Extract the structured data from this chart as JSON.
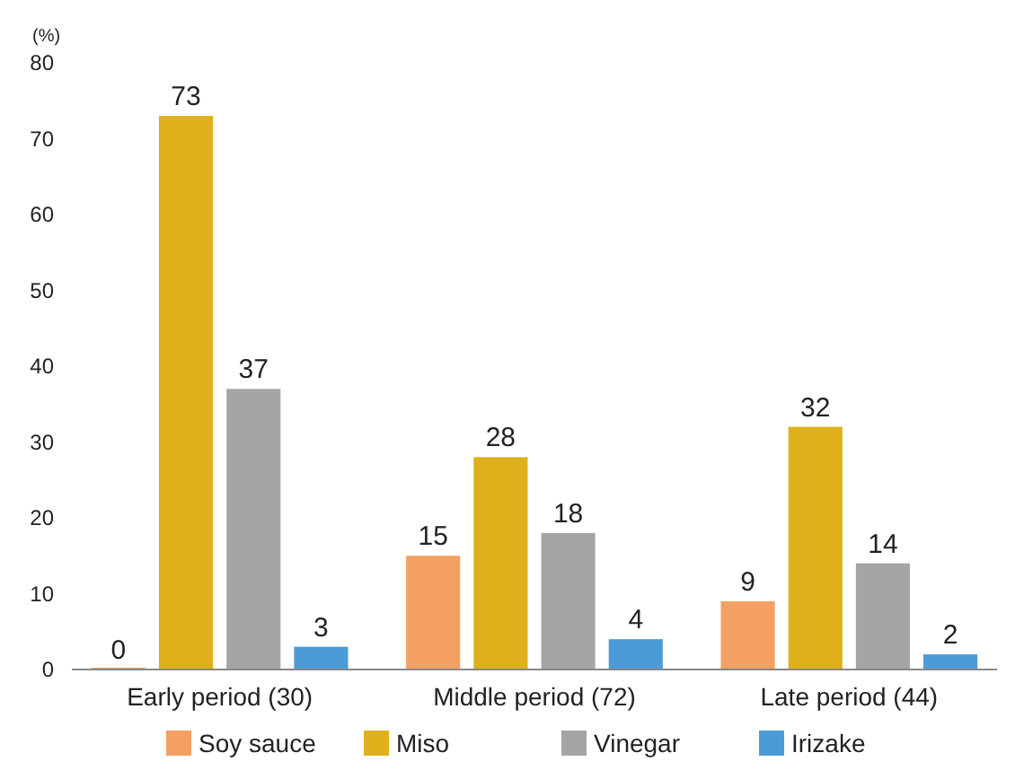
{
  "chart_data": {
    "type": "bar",
    "ylabel": "(%)",
    "categories": [
      "Early period (30)",
      "Middle period (72)",
      "Late period (44)"
    ],
    "series": [
      {
        "name": "Soy sauce",
        "color": "#f4a064",
        "values": [
          0,
          15,
          9
        ]
      },
      {
        "name": "Miso",
        "color": "#ddb01c",
        "values": [
          73,
          28,
          32
        ]
      },
      {
        "name": "Vinegar",
        "color": "#a5a5a5",
        "values": [
          37,
          18,
          14
        ]
      },
      {
        "name": "Irizake",
        "color": "#4d9bd6",
        "values": [
          3,
          4,
          2
        ]
      }
    ],
    "ylim": [
      0,
      80
    ],
    "yticks": [
      0,
      10,
      20,
      30,
      40,
      50,
      60,
      70,
      80
    ],
    "data_labels": true,
    "legend": "bottom",
    "grid": false
  }
}
